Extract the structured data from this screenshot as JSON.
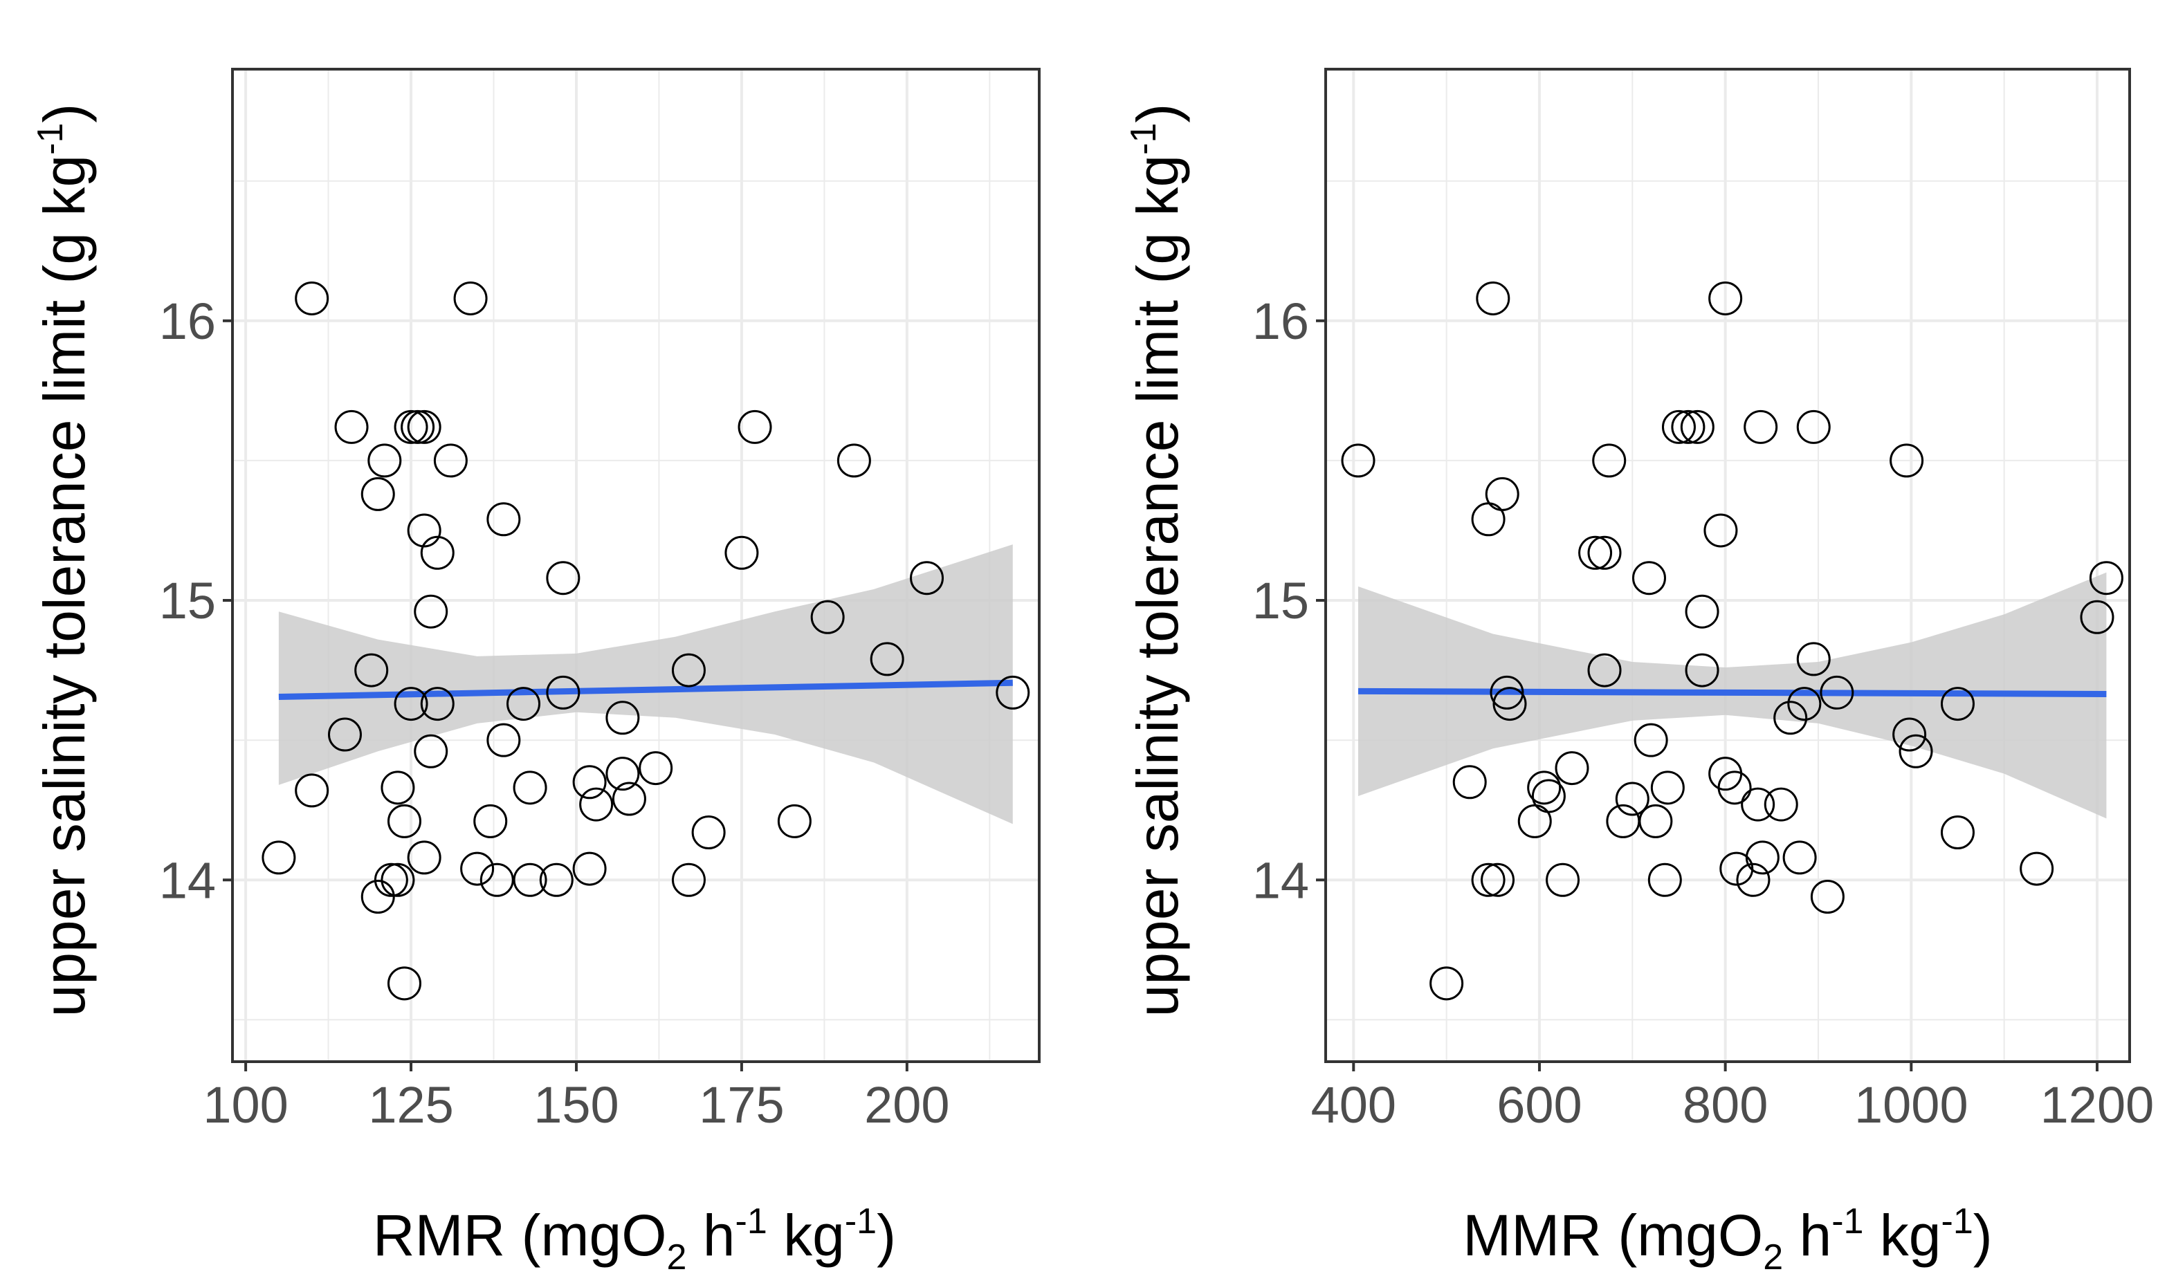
{
  "chart_data": [
    {
      "type": "scatter",
      "title": "",
      "xlabel_parts": {
        "pre": "RMR (mgO",
        "sub": "2",
        "mid": " h",
        "sup1": "-1",
        "mid2": " kg",
        "sup2": "-1",
        "post": ")"
      },
      "ylabel_parts": {
        "pre": "upper salinity tolerance limit (g kg",
        "sup": "-1",
        "post": ")"
      },
      "xlim": [
        98,
        220
      ],
      "ylim": [
        13.35,
        16.9
      ],
      "xticks": [
        100,
        125,
        150,
        175,
        200
      ],
      "xtick_labels": [
        "100",
        "125",
        "150",
        "175",
        "200"
      ],
      "yticks": [
        14,
        15,
        16
      ],
      "ytick_labels": [
        "14",
        "15",
        "16"
      ],
      "grid": true,
      "points": [
        [
          105,
          14.08
        ],
        [
          110,
          16.08
        ],
        [
          110,
          14.32
        ],
        [
          115,
          14.52
        ],
        [
          116,
          15.62
        ],
        [
          119,
          14.75
        ],
        [
          120,
          15.38
        ],
        [
          120,
          13.94
        ],
        [
          121,
          15.5
        ],
        [
          122,
          14.0
        ],
        [
          123,
          14.33
        ],
        [
          123,
          14.0
        ],
        [
          124,
          13.63
        ],
        [
          124,
          14.21
        ],
        [
          125,
          15.62
        ],
        [
          125,
          14.63
        ],
        [
          126,
          15.62
        ],
        [
          127,
          15.62
        ],
        [
          127,
          15.25
        ],
        [
          127,
          14.08
        ],
        [
          128,
          14.96
        ],
        [
          128,
          14.46
        ],
        [
          129,
          15.17
        ],
        [
          129,
          14.63
        ],
        [
          131,
          15.5
        ],
        [
          134,
          16.08
        ],
        [
          135,
          14.04
        ],
        [
          137,
          14.21
        ],
        [
          138,
          14.0
        ],
        [
          139,
          15.29
        ],
        [
          139,
          14.5
        ],
        [
          142,
          14.63
        ],
        [
          143,
          14.33
        ],
        [
          143,
          14.0
        ],
        [
          147,
          14.0
        ],
        [
          148,
          15.08
        ],
        [
          148,
          14.67
        ],
        [
          152,
          14.04
        ],
        [
          152,
          14.35
        ],
        [
          153,
          14.27
        ],
        [
          157,
          14.58
        ],
        [
          157,
          14.38
        ],
        [
          158,
          14.29
        ],
        [
          162,
          14.4
        ],
        [
          167,
          14.0
        ],
        [
          167,
          14.75
        ],
        [
          170,
          14.17
        ],
        [
          175,
          15.17
        ],
        [
          177,
          15.62
        ],
        [
          183,
          14.21
        ],
        [
          188,
          14.94
        ],
        [
          192,
          15.5
        ],
        [
          197,
          14.79
        ],
        [
          203,
          15.08
        ],
        [
          216,
          14.67
        ]
      ],
      "fit": {
        "x": [
          105,
          216
        ],
        "y": [
          14.655,
          14.705
        ]
      },
      "ci": {
        "x": [
          105,
          120,
          135,
          150,
          165,
          180,
          195,
          216
        ],
        "upper": [
          14.96,
          14.86,
          14.8,
          14.81,
          14.87,
          14.96,
          15.04,
          15.2
        ],
        "lower": [
          14.34,
          14.46,
          14.56,
          14.6,
          14.58,
          14.52,
          14.42,
          14.2
        ]
      },
      "colors": {
        "point_stroke": "#000000",
        "fit": "#3366e6",
        "ci": "#cccccc",
        "grid": "#ebebeb",
        "border": "#333333"
      }
    },
    {
      "type": "scatter",
      "title": "",
      "xlabel_parts": {
        "pre": "MMR (mgO",
        "sub": "2",
        "mid": " h",
        "sup1": "-1",
        "mid2": " kg",
        "sup2": "-1",
        "post": ")"
      },
      "ylabel_parts": {
        "pre": "upper salinity tolerance limit (g kg",
        "sup": "-1",
        "post": ")"
      },
      "xlim": [
        370,
        1235
      ],
      "ylim": [
        13.35,
        16.9
      ],
      "xticks": [
        400,
        600,
        800,
        1000,
        1200
      ],
      "xtick_labels": [
        "400",
        "600",
        "800",
        "1000",
        "1200"
      ],
      "yticks": [
        14,
        15,
        16
      ],
      "ytick_labels": [
        "14",
        "15",
        "16"
      ],
      "grid": true,
      "points": [
        [
          405,
          15.5
        ],
        [
          500,
          13.63
        ],
        [
          525,
          14.35
        ],
        [
          545,
          15.29
        ],
        [
          545,
          14.0
        ],
        [
          550,
          16.08
        ],
        [
          555,
          14.0
        ],
        [
          560,
          15.38
        ],
        [
          565,
          14.67
        ],
        [
          568,
          14.63
        ],
        [
          595,
          14.21
        ],
        [
          605,
          14.33
        ],
        [
          625,
          14.0
        ],
        [
          635,
          14.4
        ],
        [
          610,
          14.3
        ],
        [
          660,
          15.17
        ],
        [
          670,
          15.17
        ],
        [
          670,
          14.75
        ],
        [
          675,
          15.5
        ],
        [
          690,
          14.21
        ],
        [
          700,
          14.29
        ],
        [
          718,
          15.08
        ],
        [
          720,
          14.5
        ],
        [
          725,
          14.21
        ],
        [
          738,
          14.33
        ],
        [
          735,
          14.0
        ],
        [
          750,
          15.62
        ],
        [
          760,
          15.62
        ],
        [
          770,
          15.62
        ],
        [
          775,
          14.96
        ],
        [
          775,
          14.75
        ],
        [
          795,
          15.25
        ],
        [
          800,
          16.08
        ],
        [
          800,
          14.38
        ],
        [
          810,
          14.33
        ],
        [
          812,
          14.04
        ],
        [
          830,
          14.0
        ],
        [
          835,
          14.27
        ],
        [
          838,
          15.62
        ],
        [
          840,
          14.08
        ],
        [
          860,
          14.27
        ],
        [
          870,
          14.58
        ],
        [
          880,
          14.08
        ],
        [
          885,
          14.63
        ],
        [
          895,
          15.62
        ],
        [
          895,
          14.79
        ],
        [
          910,
          13.94
        ],
        [
          920,
          14.67
        ],
        [
          995,
          15.5
        ],
        [
          998,
          14.52
        ],
        [
          1005,
          14.46
        ],
        [
          1050,
          14.63
        ],
        [
          1050,
          14.17
        ],
        [
          1135,
          14.04
        ],
        [
          1200,
          14.94
        ],
        [
          1210,
          15.08
        ]
      ],
      "fit": {
        "x": [
          405,
          1210
        ],
        "y": [
          14.675,
          14.665
        ]
      },
      "ci": {
        "x": [
          405,
          550,
          700,
          800,
          900,
          1000,
          1100,
          1210
        ],
        "upper": [
          15.05,
          14.88,
          14.78,
          14.76,
          14.78,
          14.85,
          14.95,
          15.1
        ],
        "lower": [
          14.3,
          14.47,
          14.57,
          14.59,
          14.56,
          14.48,
          14.38,
          14.22
        ]
      },
      "colors": {
        "point_stroke": "#000000",
        "fit": "#3366e6",
        "ci": "#cccccc",
        "grid": "#ebebeb",
        "border": "#333333"
      }
    }
  ]
}
